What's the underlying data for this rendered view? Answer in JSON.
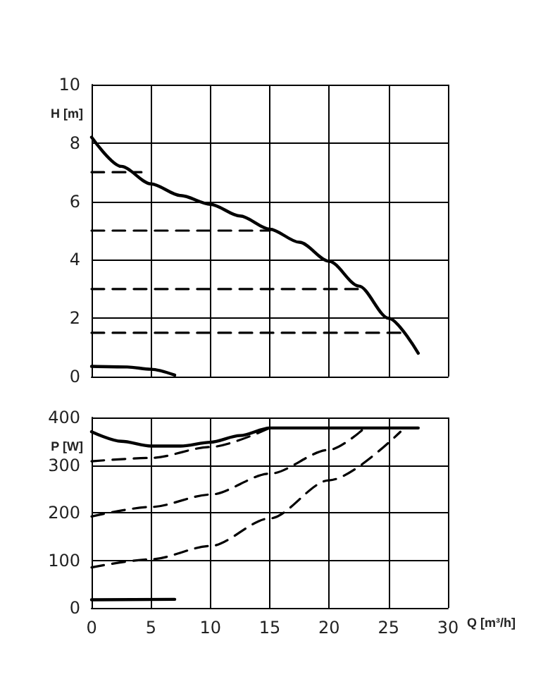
{
  "chart_data": [
    {
      "type": "line",
      "ylabel": "H [m]",
      "xlim": [
        0,
        30
      ],
      "xticks": [
        0,
        5,
        10,
        15,
        20,
        25,
        30
      ],
      "ylim": [
        0,
        10
      ],
      "yticks": [
        0,
        2,
        4,
        6,
        8,
        10
      ],
      "grid": true,
      "marker": "none",
      "tick_labels": "y",
      "series": [
        {
          "color": "#000000",
          "line_style": "solid",
          "x": [
            0,
            2.5,
            5,
            7.5,
            10,
            12.5,
            15,
            17.5,
            20,
            22.5,
            25,
            27.5
          ],
          "values": [
            8.2,
            7.2,
            6.6,
            6.2,
            5.9,
            5.5,
            5.05,
            4.6,
            3.95,
            3.1,
            2.0,
            0.8
          ]
        },
        {
          "color": "#000000",
          "line_style": "dashed",
          "x": [
            0,
            4.2
          ],
          "values": [
            7,
            7
          ]
        },
        {
          "color": "#000000",
          "line_style": "dashed",
          "x": [
            0,
            15
          ],
          "values": [
            5,
            5
          ]
        },
        {
          "color": "#000000",
          "line_style": "dashed",
          "x": [
            0,
            23
          ],
          "values": [
            3,
            3
          ]
        },
        {
          "color": "#000000",
          "line_style": "dashed",
          "x": [
            0,
            26.5
          ],
          "values": [
            1.5,
            1.5
          ]
        },
        {
          "color": "#000000",
          "line_style": "solid",
          "x": [
            0,
            3,
            5,
            7
          ],
          "values": [
            0.35,
            0.33,
            0.25,
            0.05
          ]
        }
      ]
    },
    {
      "type": "line",
      "ylabel": "P [W]",
      "xlabel": "Q [m³/h]",
      "xlim": [
        0,
        30
      ],
      "xticks": [
        0,
        5,
        10,
        15,
        20,
        25,
        30
      ],
      "ylim": [
        0,
        400
      ],
      "yticks": [
        0,
        100,
        200,
        300,
        400
      ],
      "grid": true,
      "marker": "none",
      "series": [
        {
          "color": "#000000",
          "line_style": "solid",
          "x": [
            0,
            2.5,
            5,
            7.5,
            10,
            12.5,
            15,
            27.5
          ],
          "values": [
            370,
            350,
            340,
            340,
            348,
            362,
            378,
            378
          ]
        },
        {
          "color": "#000000",
          "line_style": "dashed",
          "x": [
            0,
            5,
            10,
            15
          ],
          "values": [
            308,
            315,
            338,
            378
          ]
        },
        {
          "color": "#000000",
          "line_style": "dashed",
          "x": [
            0,
            5,
            10,
            15,
            20,
            23
          ],
          "values": [
            192,
            212,
            238,
            282,
            332,
            378
          ]
        },
        {
          "color": "#000000",
          "line_style": "dashed",
          "x": [
            0,
            5,
            10,
            15,
            20,
            26
          ],
          "values": [
            85,
            102,
            130,
            188,
            268,
            370
          ]
        },
        {
          "color": "#000000",
          "line_style": "solid",
          "x": [
            0,
            7
          ],
          "values": [
            17,
            18
          ]
        }
      ]
    }
  ]
}
